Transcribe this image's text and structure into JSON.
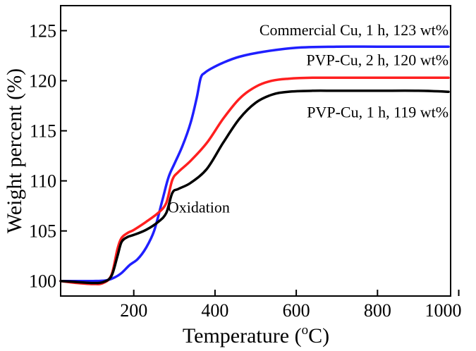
{
  "chart_data": {
    "type": "line",
    "title": "",
    "xlabel": "Temperature (",
    "xlabel_sup": "o",
    "xlabel_suffix": "C)",
    "ylabel": "Weight percent (%)",
    "xlim": [
      20,
      980
    ],
    "ylim": [
      98.5,
      127.5
    ],
    "xticks": [
      200,
      400,
      600,
      800,
      1000
    ],
    "yticks": [
      100,
      105,
      110,
      115,
      120,
      125
    ],
    "xtick_labels": [
      "200",
      "400",
      "600",
      "800",
      "1000"
    ],
    "ytick_labels": [
      "100",
      "105",
      "110",
      "115",
      "120",
      "125"
    ],
    "grid": false,
    "annotations": [
      {
        "name": "oxidation-annotation",
        "text": "Oxidation",
        "x": 360,
        "y": 107.4
      }
    ],
    "series": [
      {
        "name": "commercial-cu",
        "label": "Commercial Cu, 1 h, 123 wt%",
        "color": "#1f1fff",
        "label_x": 975,
        "label_y": 125.1,
        "x": [
          20,
          60,
          100,
          130,
          150,
          170,
          190,
          210,
          230,
          250,
          270,
          285,
          300,
          320,
          340,
          355,
          365,
          375,
          390,
          420,
          460,
          520,
          600,
          700,
          800,
          900,
          975
        ],
        "y": [
          100.0,
          100.0,
          100.0,
          100.05,
          100.3,
          100.8,
          101.6,
          102.2,
          103.3,
          105.0,
          108.0,
          110.3,
          111.7,
          113.5,
          115.8,
          118.3,
          120.3,
          120.8,
          121.2,
          121.8,
          122.4,
          122.9,
          123.3,
          123.4,
          123.4,
          123.4,
          123.4
        ]
      },
      {
        "name": "pvp-cu-2h",
        "label": "PVP-Cu, 2 h, 120 wt%",
        "color": "#ff1f1f",
        "label_x": 975,
        "label_y": 122.1,
        "x": [
          20,
          60,
          100,
          125,
          145,
          160,
          170,
          185,
          200,
          230,
          260,
          280,
          295,
          310,
          340,
          380,
          420,
          460,
          500,
          540,
          580,
          640,
          700,
          800,
          900,
          975
        ],
        "y": [
          100.0,
          99.8,
          99.7,
          99.8,
          100.6,
          103.2,
          104.3,
          104.8,
          105.1,
          105.9,
          106.8,
          107.8,
          110.1,
          110.9,
          112.0,
          113.8,
          116.2,
          118.2,
          119.4,
          120.0,
          120.2,
          120.3,
          120.3,
          120.3,
          120.3,
          120.3
        ]
      },
      {
        "name": "pvp-cu-1h",
        "label": "PVP-Cu, 1 h, 119 wt%",
        "color": "#000000",
        "label_x": 975,
        "label_y": 116.9,
        "x": [
          20,
          60,
          100,
          125,
          145,
          160,
          170,
          185,
          200,
          230,
          260,
          280,
          295,
          310,
          340,
          380,
          420,
          460,
          500,
          540,
          580,
          640,
          700,
          800,
          900,
          975
        ],
        "y": [
          100.0,
          99.9,
          99.8,
          99.9,
          100.5,
          102.5,
          103.9,
          104.4,
          104.6,
          105.1,
          105.9,
          106.8,
          108.8,
          109.2,
          109.8,
          111.2,
          113.8,
          116.2,
          117.8,
          118.6,
          118.9,
          119.0,
          119.0,
          119.0,
          119.0,
          118.9
        ]
      }
    ]
  }
}
